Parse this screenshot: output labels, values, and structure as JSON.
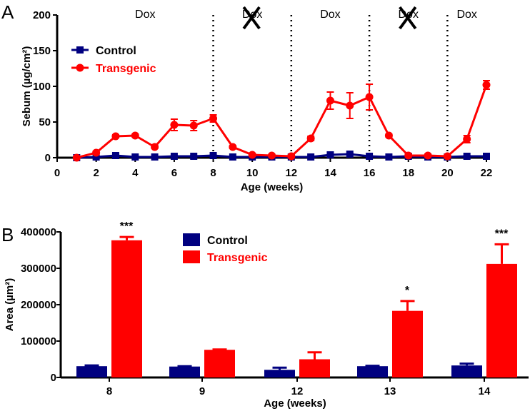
{
  "chart_data": [
    {
      "panel_label": "A",
      "type": "line",
      "xlabel": "Age (weeks)",
      "ylabel": "Sebum (µg/cm²)",
      "xlim": [
        0,
        22
      ],
      "ylim": [
        0,
        200
      ],
      "xticks": [
        0,
        2,
        4,
        6,
        8,
        10,
        12,
        14,
        16,
        18,
        20,
        22
      ],
      "yticks": [
        0,
        50,
        100,
        150,
        200
      ],
      "legend_placement": "top-left",
      "annotations": [
        "Dox",
        "Dox",
        "Dox",
        "Dox",
        "Dox"
      ],
      "crossed_out": [
        false,
        true,
        false,
        true,
        false
      ],
      "period_boundaries": [
        8,
        12,
        16,
        20
      ],
      "x": [
        1,
        2,
        3,
        4,
        5,
        6,
        7,
        8,
        9,
        10,
        11,
        12,
        13,
        14,
        15,
        16,
        17,
        18,
        19,
        20,
        21,
        22
      ],
      "series": [
        {
          "name": "Control",
          "color": "#000080",
          "marker": "square",
          "values": [
            0,
            1,
            3,
            1,
            1,
            2,
            2,
            3,
            1,
            1,
            1,
            1,
            1,
            4,
            5,
            2,
            1,
            2,
            1,
            1,
            2,
            2
          ],
          "errors": [
            1,
            1,
            1,
            1,
            1,
            1,
            1,
            1,
            1,
            1,
            1,
            1,
            1,
            1,
            1,
            1,
            1,
            1,
            1,
            1,
            1,
            1
          ]
        },
        {
          "name": "Transgenic",
          "color": "#ff0000",
          "marker": "circle",
          "values": [
            0,
            7,
            30,
            31,
            15,
            46,
            45,
            55,
            15,
            4,
            3,
            2,
            27,
            80,
            73,
            85,
            31,
            3,
            3,
            2,
            26,
            102
          ],
          "errors": [
            1,
            2,
            2,
            2,
            2,
            8,
            7,
            5,
            2,
            2,
            2,
            2,
            3,
            12,
            18,
            18,
            2,
            2,
            2,
            2,
            5,
            6
          ]
        }
      ]
    },
    {
      "panel_label": "B",
      "type": "bar",
      "xlabel": "Age (weeks)",
      "ylabel": "Area (µm²)",
      "categories": [
        "8",
        "9",
        "12",
        "13",
        "14"
      ],
      "ylim": [
        0,
        400000
      ],
      "yticks": [
        "0",
        "100000",
        "200000",
        "300000",
        "400000"
      ],
      "legend_placement": "top-center",
      "significance": [
        "***",
        "",
        "",
        "*",
        "***"
      ],
      "series": [
        {
          "name": "Control",
          "color": "#000080",
          "values": [
            31000,
            30000,
            21000,
            31000,
            33000
          ],
          "errors": [
            2000,
            1000,
            6000,
            1000,
            5000
          ]
        },
        {
          "name": "Transgenic",
          "color": "#ff0000",
          "values": [
            377000,
            76000,
            50000,
            183000,
            312000
          ],
          "errors": [
            9000,
            1000,
            19000,
            27000,
            54000
          ]
        }
      ]
    }
  ]
}
